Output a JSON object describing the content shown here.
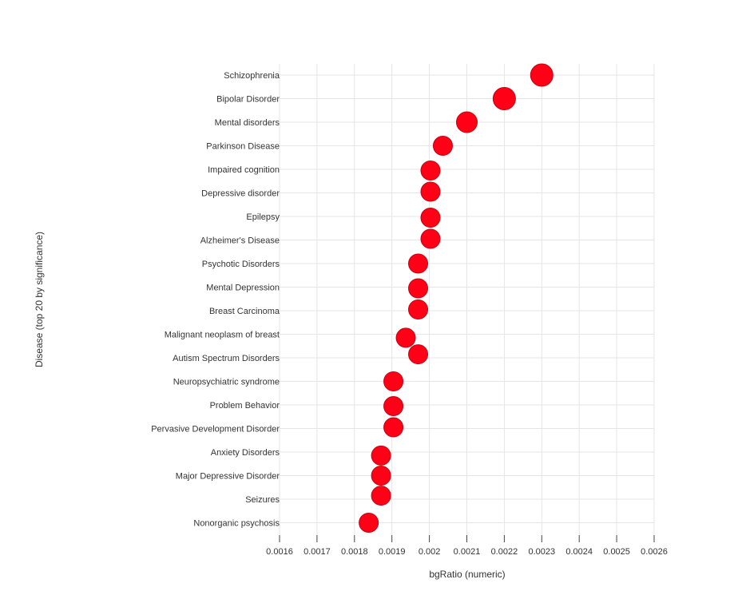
{
  "chart_data": {
    "type": "scatter",
    "title": "",
    "xlabel": "bgRatio (numeric)",
    "ylabel": "Disease (top 20 by significance)",
    "xlim": [
      0.0016,
      0.0026
    ],
    "xticks": [
      "0.0016",
      "0.0017",
      "0.0018",
      "0.0019",
      "0.002",
      "0.0021",
      "0.0022",
      "0.0023",
      "0.0024",
      "0.0025",
      "0.0026"
    ],
    "categories": [
      "Schizophrenia",
      "Bipolar Disorder",
      "Mental disorders",
      "Parkinson Disease",
      "Impaired cognition",
      "Depressive disorder",
      "Epilepsy",
      "Alzheimer's Disease",
      "Psychotic Disorders",
      "Mental Depression",
      "Breast Carcinoma",
      "Malignant neoplasm of breast",
      "Autism Spectrum Disorders",
      "Neuropsychiatric syndrome",
      "Problem Behavior",
      "Pervasive Development Disorder",
      "Anxiety Disorders",
      "Major Depressive Disorder",
      "Seizures",
      "Nonorganic psychosis"
    ],
    "x": [
      0.0023,
      0.0022,
      0.0021,
      0.002036,
      0.002003,
      0.002003,
      0.002003,
      0.002003,
      0.00197,
      0.00197,
      0.00197,
      0.001937,
      0.00197,
      0.001904,
      0.001904,
      0.001904,
      0.001871,
      0.001871,
      0.001871,
      0.001838
    ],
    "y_offset": [
      0,
      0,
      0,
      0,
      0.05,
      -0.05,
      0.05,
      -0.05,
      0,
      0.05,
      -0.05,
      0.15,
      -0.15,
      0,
      0.05,
      -0.05,
      0.15,
      0,
      -0.15,
      0
    ],
    "marker_color": "#ff0016",
    "marker_outline": "#c8000f",
    "grid": true,
    "legend": "none"
  }
}
